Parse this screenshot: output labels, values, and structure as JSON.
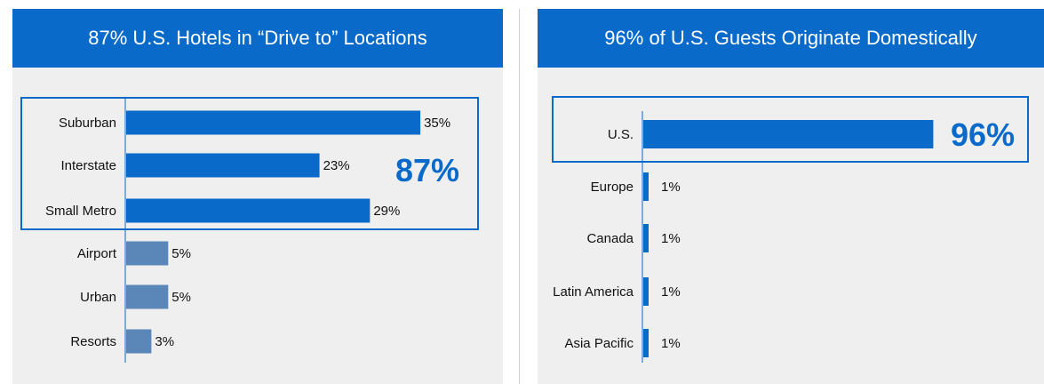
{
  "chart_data": [
    {
      "type": "bar",
      "orientation": "horizontal",
      "title": "87% U.S. Hotels in “Drive to” Locations",
      "categories": [
        "Suburban",
        "Interstate",
        "Small Metro",
        "Airport",
        "Urban",
        "Resorts"
      ],
      "values": [
        35,
        23,
        29,
        5,
        5,
        3
      ],
      "value_labels": [
        "35%",
        "23%",
        "29%",
        "5%",
        "5%",
        "3%"
      ],
      "highlighted_categories": [
        "Suburban",
        "Interstate",
        "Small Metro"
      ],
      "highlight_total_label": "87%",
      "xlim": [
        0,
        100
      ],
      "grid": false,
      "colors": {
        "highlight": "#0a6ac9",
        "other": "#5b86b8"
      }
    },
    {
      "type": "bar",
      "orientation": "horizontal",
      "title": "96% of U.S. Guests Originate Domestically",
      "categories": [
        "U.S.",
        "Europe",
        "Canada",
        "Latin America",
        "Asia Pacific"
      ],
      "values": [
        96,
        1,
        1,
        1,
        1
      ],
      "value_labels": [
        "96%",
        "1%",
        "1%",
        "1%",
        "1%"
      ],
      "highlighted_categories": [
        "U.S."
      ],
      "highlight_total_label": "96%",
      "xlim": [
        0,
        100
      ],
      "grid": false,
      "colors": {
        "highlight": "#0a6ac9",
        "other": "#0a6ac9"
      }
    }
  ]
}
